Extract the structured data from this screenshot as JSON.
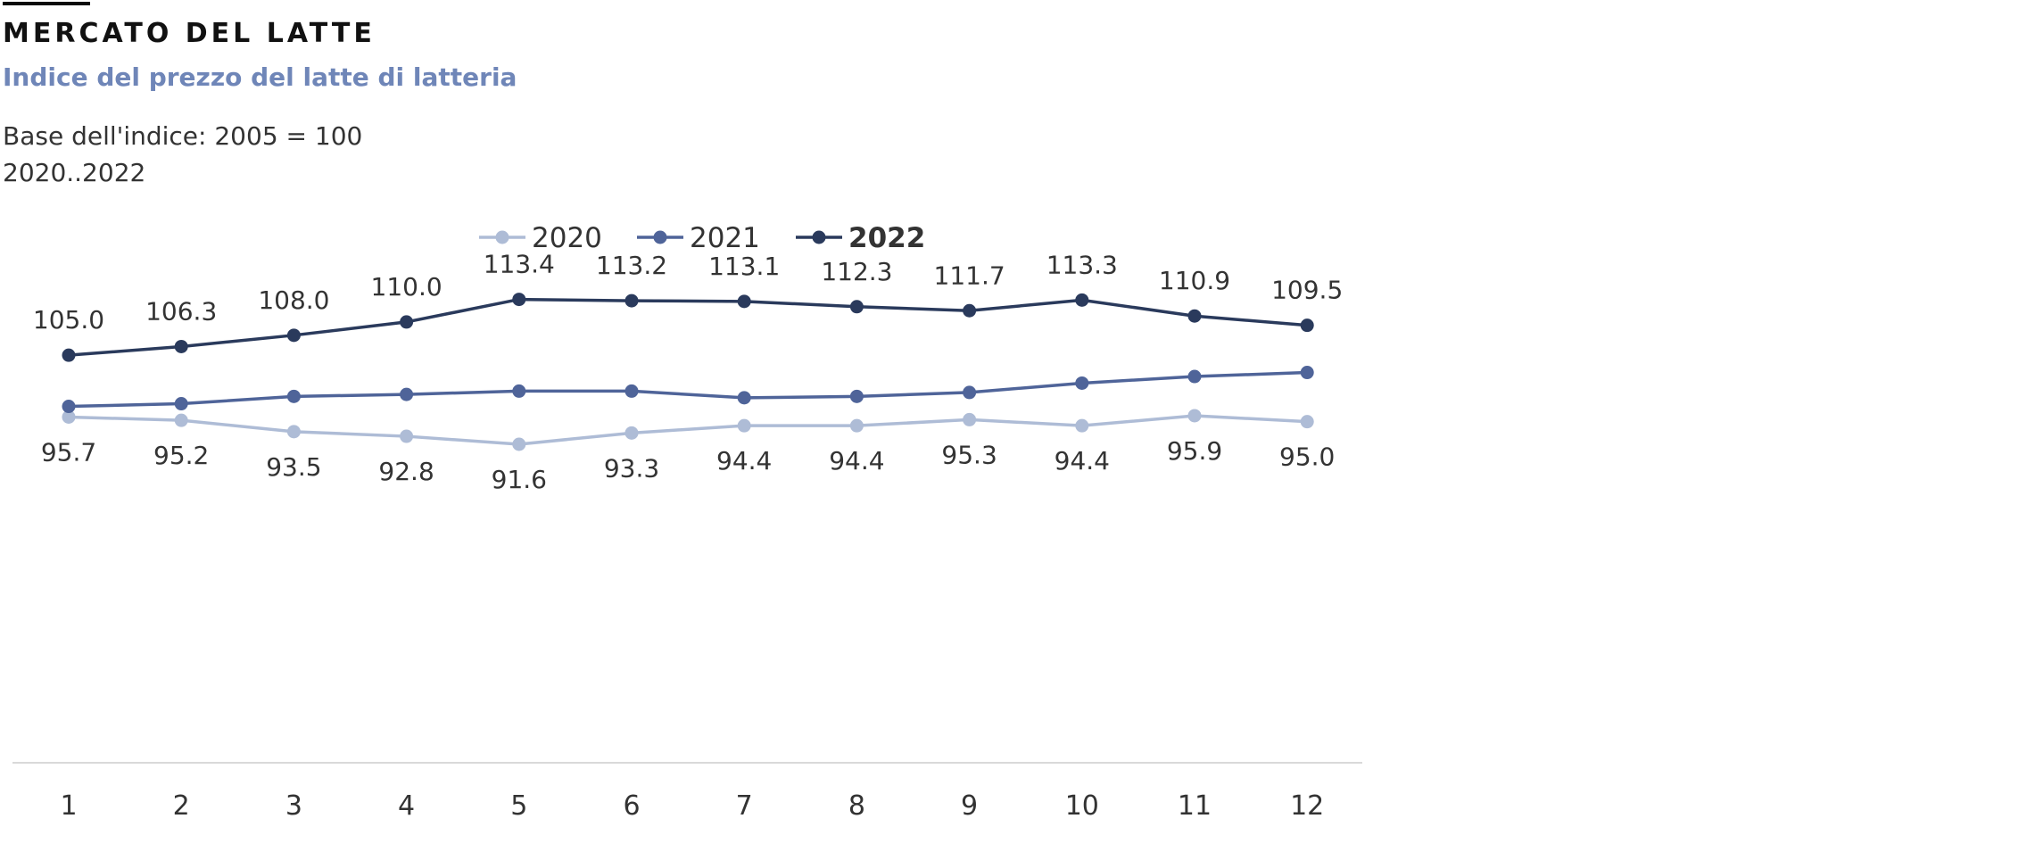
{
  "header": {
    "title": "MERCATO DEL LATTE",
    "subtitle": "Indice del prezzo del latte di latteria",
    "note_base": "Base dell'indice: 2005 = 100",
    "note_range": "2020..2022"
  },
  "colors": {
    "s2020": "#aebcd6",
    "s2021": "#4f6499",
    "s2022": "#2a3a5c",
    "axis": "#d9d9d9",
    "subtitle": "#6f86b8"
  },
  "chart_data": {
    "type": "line",
    "title": "Indice del prezzo del latte di latteria",
    "x": [
      1,
      2,
      3,
      4,
      5,
      6,
      7,
      8,
      9,
      10,
      11,
      12
    ],
    "series": [
      {
        "name": "2020",
        "values": [
          95.7,
          95.2,
          93.5,
          92.8,
          91.6,
          93.3,
          94.4,
          94.4,
          95.3,
          94.4,
          95.9,
          95.0
        ],
        "labels": "below"
      },
      {
        "name": "2021",
        "values": [
          97.3,
          97.7,
          98.8,
          99.1,
          99.6,
          99.6,
          98.6,
          98.8,
          99.4,
          100.8,
          101.8,
          102.4
        ],
        "labels": "none"
      },
      {
        "name": "2022",
        "values": [
          105.0,
          106.3,
          108.0,
          110.0,
          113.4,
          113.2,
          113.1,
          112.3,
          111.7,
          113.3,
          110.9,
          109.5
        ],
        "labels": "above",
        "bold_legend": true
      }
    ],
    "xlabel": "",
    "ylabel": "",
    "grid": false,
    "legend_position": "top-center"
  }
}
